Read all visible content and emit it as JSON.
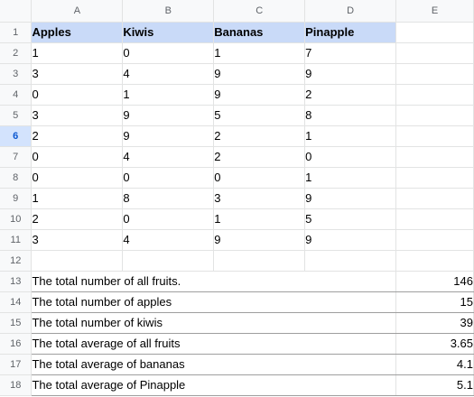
{
  "columns": [
    "A",
    "B",
    "C",
    "D",
    "E"
  ],
  "row_numbers": [
    "1",
    "2",
    "3",
    "4",
    "5",
    "6",
    "7",
    "8",
    "9",
    "10",
    "11",
    "12",
    "13",
    "14",
    "15",
    "16",
    "17",
    "18"
  ],
  "active_row": "6",
  "header_row": [
    "Apples",
    "Kiwis",
    "Bananas",
    "Pinapple"
  ],
  "data_rows": [
    [
      "1",
      "0",
      "1",
      "7"
    ],
    [
      "3",
      "4",
      "9",
      "9"
    ],
    [
      "0",
      "1",
      "9",
      "2"
    ],
    [
      "3",
      "9",
      "5",
      "8"
    ],
    [
      "2",
      "9",
      "2",
      "1"
    ],
    [
      "0",
      "4",
      "2",
      "0"
    ],
    [
      "0",
      "0",
      "0",
      "1"
    ],
    [
      "1",
      "8",
      "3",
      "9"
    ],
    [
      "2",
      "0",
      "1",
      "5"
    ],
    [
      "3",
      "4",
      "9",
      "9"
    ]
  ],
  "summary": [
    {
      "label": "The total number of all fruits.",
      "value": "146"
    },
    {
      "label": "The total number of apples",
      "value": "15"
    },
    {
      "label": "The total number of kiwis",
      "value": "39"
    },
    {
      "label": "The total average of all fruits",
      "value": "3.65"
    },
    {
      "label": "The total average of bananas",
      "value": "4.1"
    },
    {
      "label": "The total average of Pinapple",
      "value": "5.1"
    }
  ],
  "colors": {
    "header_fill": "#c9daf8",
    "active_row_header": "#d3e3fd",
    "grid_line": "#e2e3e3"
  }
}
